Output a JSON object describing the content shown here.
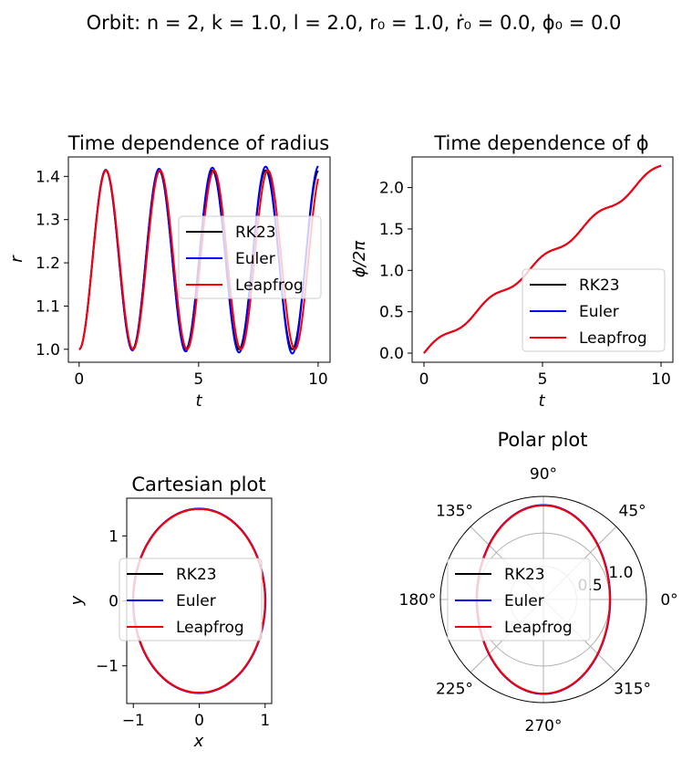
{
  "suptitle": "Orbit:   n = 2,  k = 1.0,  l = 2.0,  r₀ = 1.0,  ṙ₀ = 0.0,  ϕ₀ = 0.0",
  "colors": {
    "RK23": "#000000",
    "Euler": "#0000ff",
    "Leapfrog": "#ff0000"
  },
  "chart_data": [
    {
      "type": "line",
      "title": "Time dependence of radius",
      "xlabel": "t",
      "ylabel": "r",
      "xlim": [
        -0.45,
        10.5
      ],
      "ylim": [
        0.97,
        1.445
      ],
      "xticks": [
        "0",
        "5",
        "10"
      ],
      "yticks": [
        "1.0",
        "1.1",
        "1.2",
        "1.3",
        "1.4"
      ],
      "legend": "center-right",
      "grid": false,
      "period": 2.23,
      "r_min": 1.0,
      "r_max": 1.414,
      "series": [
        {
          "name": "RK23",
          "x": [
            0,
            1.115,
            2.23,
            3.345,
            4.46,
            5.575,
            6.69,
            7.805,
            8.92,
            10.0
          ],
          "y": [
            1.0,
            1.414,
            1.0,
            1.414,
            1.0,
            1.414,
            1.0,
            1.414,
            1.0,
            1.41
          ]
        },
        {
          "name": "Euler",
          "x": [
            0,
            1.115,
            2.23,
            3.345,
            4.46,
            5.575,
            6.69,
            7.805,
            8.92,
            10.0
          ],
          "y": [
            1.0,
            1.415,
            0.999,
            1.417,
            0.997,
            1.419,
            0.995,
            1.422,
            0.992,
            1.425
          ]
        },
        {
          "name": "Leapfrog",
          "x": [
            0,
            1.115,
            2.23,
            3.345,
            4.46,
            5.575,
            6.69,
            7.805,
            8.92,
            10.0
          ],
          "y": [
            1.0,
            1.414,
            1.0,
            1.414,
            1.0,
            1.414,
            1.0,
            1.414,
            1.0,
            1.41
          ]
        }
      ]
    },
    {
      "type": "line",
      "title": "Time dependence of ϕ",
      "xlabel": "t",
      "ylabel": "ϕ/2π",
      "xlim": [
        -0.5,
        10.5
      ],
      "ylim": [
        -0.11,
        2.37
      ],
      "xticks": [
        "0",
        "5",
        "10"
      ],
      "yticks": [
        "0.0",
        "0.5",
        "1.0",
        "1.5",
        "2.0"
      ],
      "legend": "lower-right",
      "grid": false,
      "series": [
        {
          "name": "RK23",
          "x": [
            0,
            1,
            2,
            3,
            4,
            5,
            6,
            7,
            8,
            9,
            10
          ],
          "y": [
            0.0,
            0.2,
            0.36,
            0.62,
            0.8,
            1.12,
            1.33,
            1.62,
            1.8,
            2.05,
            2.26
          ]
        },
        {
          "name": "Euler",
          "x": [
            0,
            1,
            2,
            3,
            4,
            5,
            6,
            7,
            8,
            9,
            10
          ],
          "y": [
            0.0,
            0.2,
            0.36,
            0.62,
            0.8,
            1.12,
            1.33,
            1.62,
            1.8,
            2.05,
            2.26
          ]
        },
        {
          "name": "Leapfrog",
          "x": [
            0,
            1,
            2,
            3,
            4,
            5,
            6,
            7,
            8,
            9,
            10
          ],
          "y": [
            0.0,
            0.2,
            0.36,
            0.62,
            0.8,
            1.12,
            1.33,
            1.62,
            1.8,
            2.05,
            2.26
          ]
        }
      ]
    },
    {
      "type": "line",
      "title": "Cartesian plot",
      "xlabel": "x",
      "ylabel": "y",
      "xlim": [
        -1.1,
        1.1
      ],
      "ylim": [
        -1.58,
        1.58
      ],
      "xticks": [
        "−1",
        "0",
        "1"
      ],
      "yticks": [
        "−1",
        "0",
        "1"
      ],
      "legend": "center",
      "grid": false,
      "series": [
        {
          "name": "RK23",
          "semi_x": 1.0,
          "semi_y": 1.414
        },
        {
          "name": "Euler",
          "semi_x": 1.005,
          "semi_y": 1.42
        },
        {
          "name": "Leapfrog",
          "semi_x": 1.0,
          "semi_y": 1.414
        }
      ]
    },
    {
      "type": "line",
      "title": "Polar plot",
      "rlim": [
        0,
        1.55
      ],
      "rticks": [
        "0.5",
        "1.0"
      ],
      "angle_labels": [
        "0°",
        "45°",
        "90°",
        "135°",
        "180°",
        "225°",
        "270°",
        "315°"
      ],
      "legend": "center-left",
      "grid": true,
      "series": [
        {
          "name": "RK23",
          "semi_x": 1.0,
          "semi_y": 1.414
        },
        {
          "name": "Euler",
          "semi_x": 1.005,
          "semi_y": 1.42
        },
        {
          "name": "Leapfrog",
          "semi_x": 1.0,
          "semi_y": 1.414
        }
      ]
    }
  ]
}
